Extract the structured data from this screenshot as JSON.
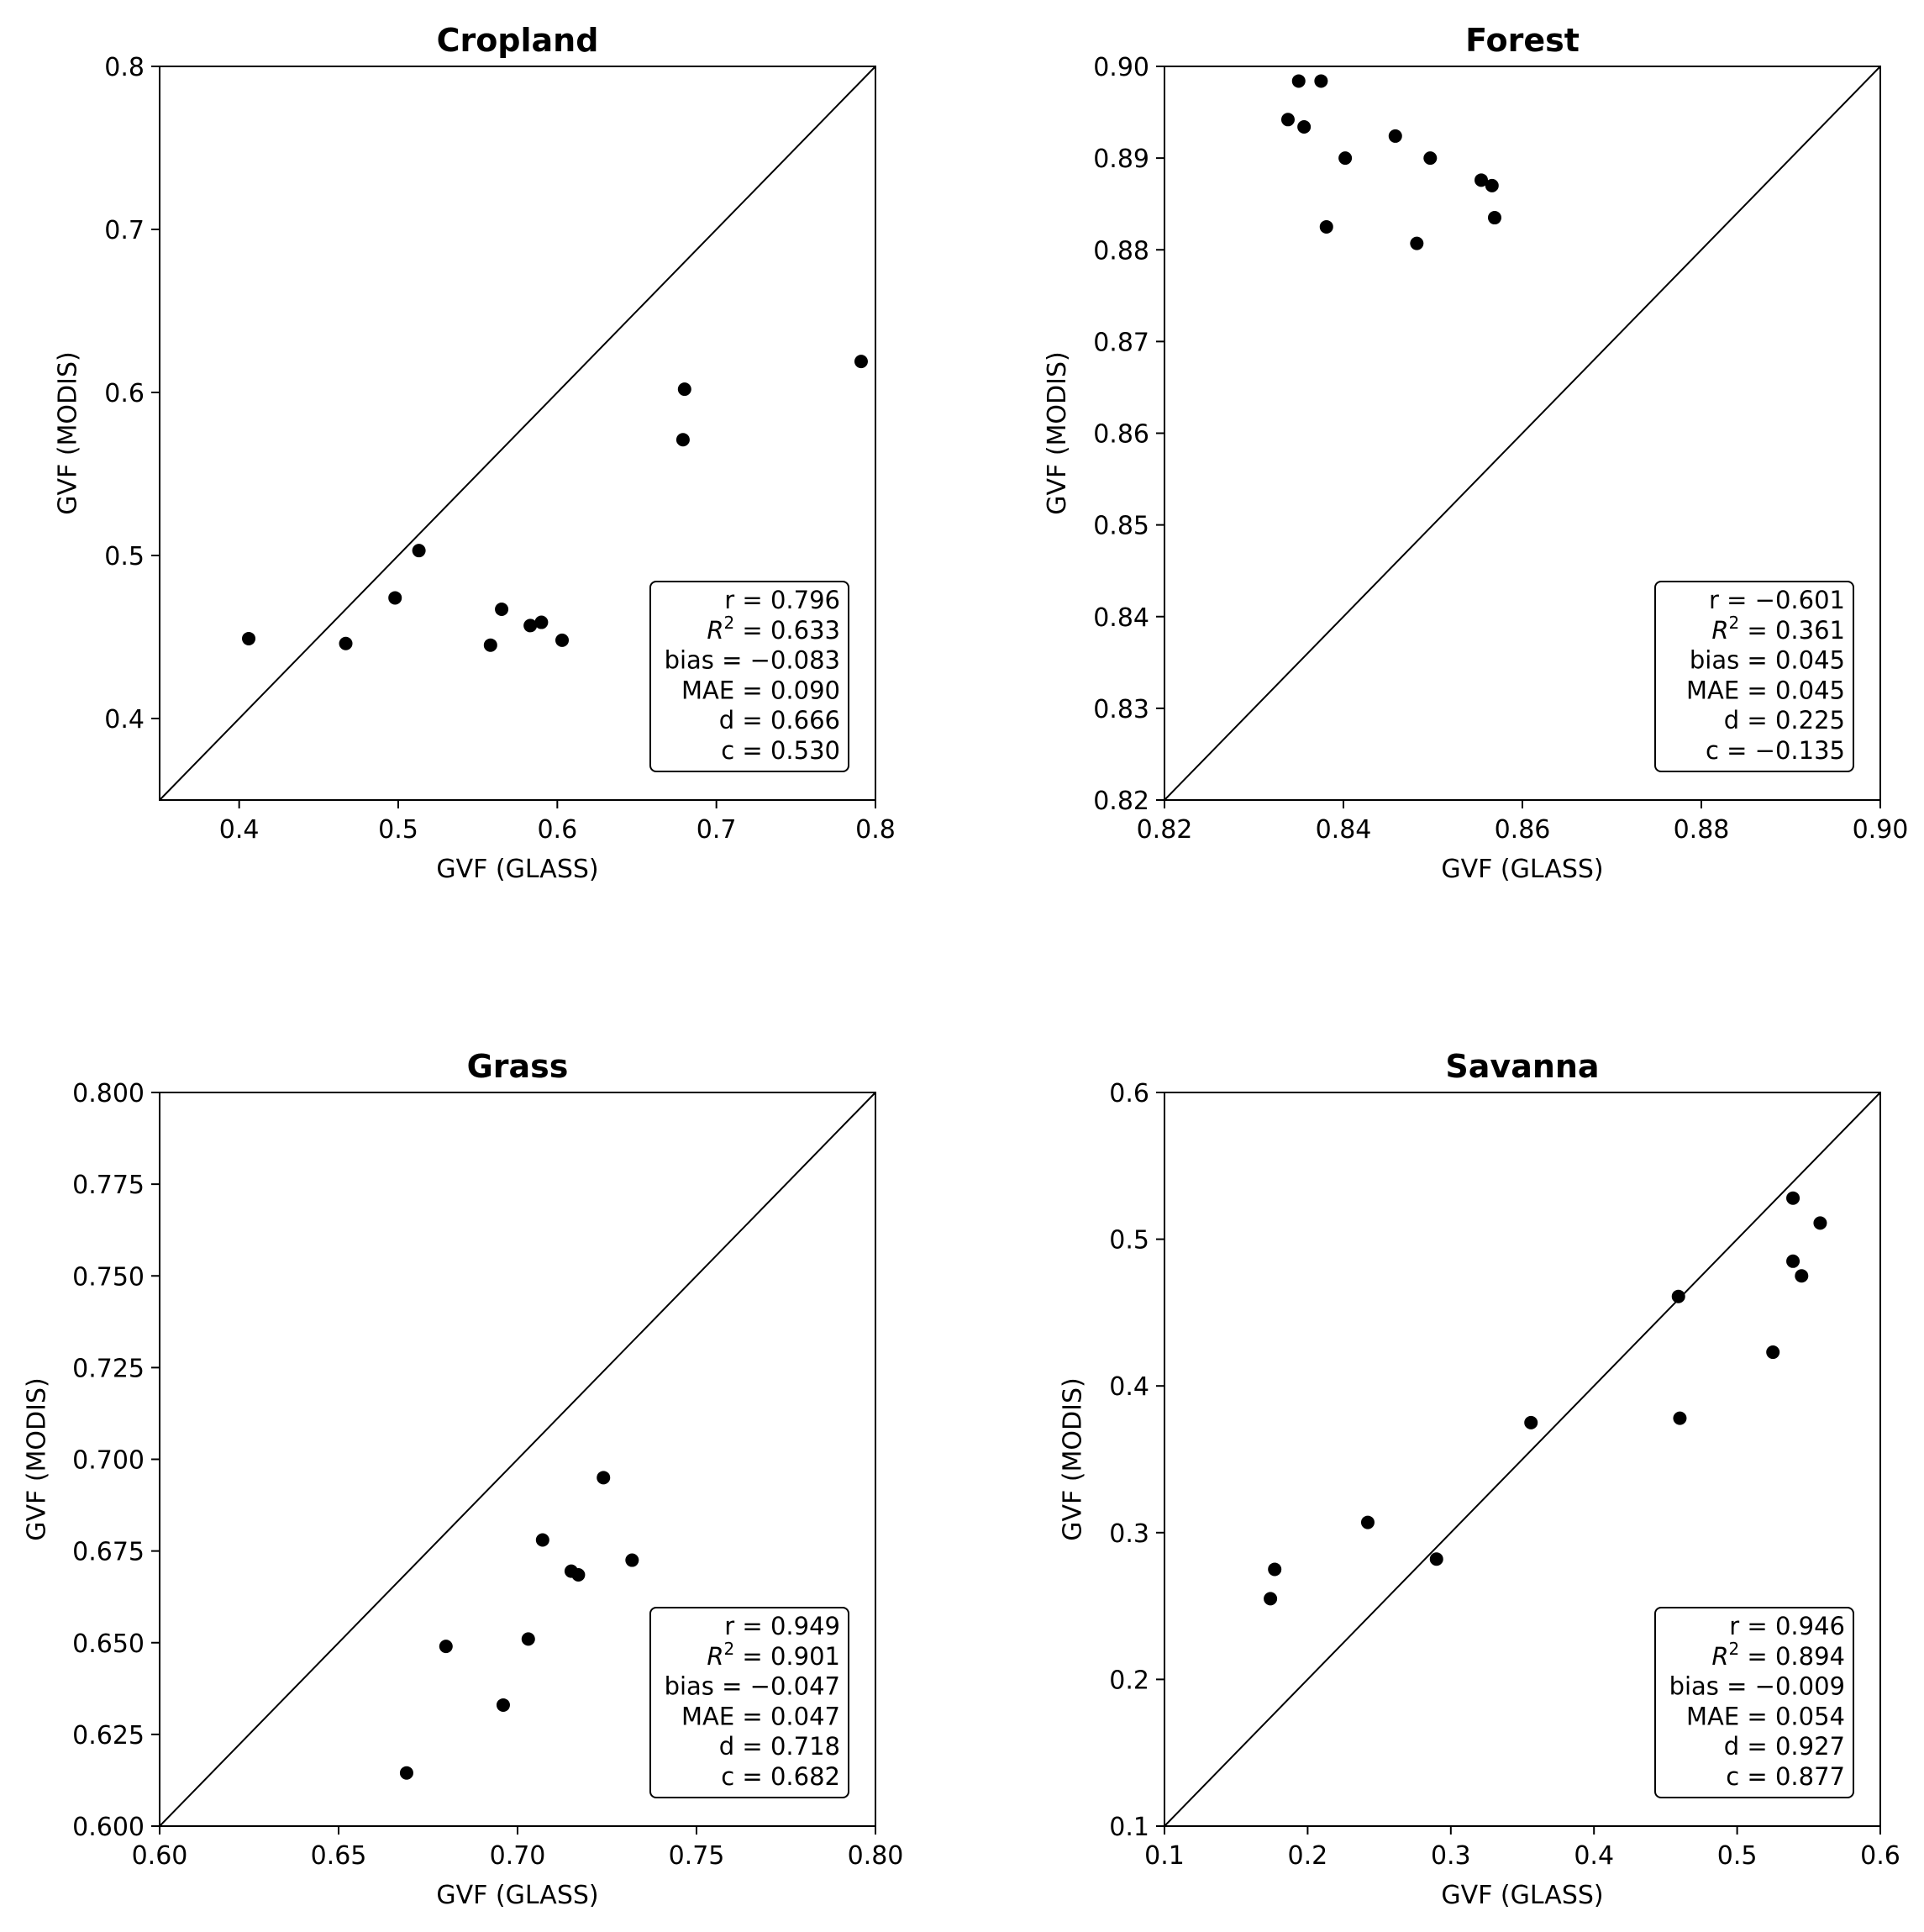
{
  "colors": {
    "marker": "#000000",
    "background": "#ffffff",
    "axes": "#000000"
  },
  "chart_data": [
    {
      "type": "scatter",
      "title": "Cropland",
      "xlabel": "GVF (GLASS)",
      "ylabel": "GVF (MODIS)",
      "xlim": [
        0.35,
        0.8
      ],
      "ylim": [
        0.35,
        0.8
      ],
      "xticks": [
        0.4,
        0.5,
        0.6,
        0.7,
        0.8
      ],
      "yticks": [
        0.4,
        0.5,
        0.6,
        0.7,
        0.8
      ],
      "xtick_labels": [
        "0.4",
        "0.5",
        "0.6",
        "0.7",
        "0.8"
      ],
      "ytick_labels": [
        "0.4",
        "0.5",
        "0.6",
        "0.7",
        "0.8"
      ],
      "reference_line": "1:1",
      "points": [
        {
          "x": 0.406,
          "y": 0.449
        },
        {
          "x": 0.467,
          "y": 0.446
        },
        {
          "x": 0.498,
          "y": 0.474
        },
        {
          "x": 0.513,
          "y": 0.503
        },
        {
          "x": 0.558,
          "y": 0.445
        },
        {
          "x": 0.565,
          "y": 0.467
        },
        {
          "x": 0.583,
          "y": 0.457
        },
        {
          "x": 0.59,
          "y": 0.459
        },
        {
          "x": 0.603,
          "y": 0.448
        },
        {
          "x": 0.679,
          "y": 0.571
        },
        {
          "x": 0.68,
          "y": 0.602
        },
        {
          "x": 0.791,
          "y": 0.619
        }
      ],
      "stats": [
        {
          "label": "r",
          "value": "0.796"
        },
        {
          "label": "R",
          "sup": "2",
          "value": "0.633"
        },
        {
          "label": "bias",
          "value": "−0.083"
        },
        {
          "label": "MAE",
          "value": "0.090"
        },
        {
          "label": "d",
          "value": "0.666"
        },
        {
          "label": "c",
          "value": "0.530"
        }
      ]
    },
    {
      "type": "scatter",
      "title": "Forest",
      "xlabel": "GVF (GLASS)",
      "ylabel": "GVF (MODIS)",
      "xlim": [
        0.82,
        0.9
      ],
      "ylim": [
        0.82,
        0.9
      ],
      "xticks": [
        0.82,
        0.84,
        0.86,
        0.88,
        0.9
      ],
      "yticks": [
        0.82,
        0.83,
        0.84,
        0.85,
        0.86,
        0.87,
        0.88,
        0.89,
        0.9
      ],
      "xtick_labels": [
        "0.82",
        "0.84",
        "0.86",
        "0.88",
        "0.90"
      ],
      "ytick_labels": [
        "0.82",
        "0.83",
        "0.84",
        "0.85",
        "0.86",
        "0.87",
        "0.88",
        "0.89",
        "0.90"
      ],
      "reference_line": "1:1",
      "points": [
        {
          "x": 0.8338,
          "y": 0.8942
        },
        {
          "x": 0.835,
          "y": 0.8984
        },
        {
          "x": 0.8356,
          "y": 0.8934
        },
        {
          "x": 0.8375,
          "y": 0.8984
        },
        {
          "x": 0.8381,
          "y": 0.8825
        },
        {
          "x": 0.8402,
          "y": 0.89
        },
        {
          "x": 0.8458,
          "y": 0.8924
        },
        {
          "x": 0.8482,
          "y": 0.8807
        },
        {
          "x": 0.8497,
          "y": 0.89
        },
        {
          "x": 0.8554,
          "y": 0.8876
        },
        {
          "x": 0.8566,
          "y": 0.887
        },
        {
          "x": 0.8569,
          "y": 0.8835
        }
      ],
      "stats": [
        {
          "label": "r",
          "value": "−0.601"
        },
        {
          "label": "R",
          "sup": "2",
          "value": "0.361"
        },
        {
          "label": "bias",
          "value": "0.045"
        },
        {
          "label": "MAE",
          "value": "0.045"
        },
        {
          "label": "d",
          "value": "0.225"
        },
        {
          "label": "c",
          "value": "−0.135"
        }
      ]
    },
    {
      "type": "scatter",
      "title": "Grass",
      "xlabel": "GVF (GLASS)",
      "ylabel": "GVF (MODIS)",
      "xlim": [
        0.6,
        0.8
      ],
      "ylim": [
        0.6,
        0.8
      ],
      "xticks": [
        0.6,
        0.65,
        0.7,
        0.75,
        0.8
      ],
      "yticks": [
        0.6,
        0.625,
        0.65,
        0.675,
        0.7,
        0.725,
        0.75,
        0.775,
        0.8
      ],
      "xtick_labels": [
        "0.60",
        "0.65",
        "0.70",
        "0.75",
        "0.80"
      ],
      "ytick_labels": [
        "0.600",
        "0.625",
        "0.650",
        "0.675",
        "0.700",
        "0.725",
        "0.750",
        "0.775",
        "0.800"
      ],
      "reference_line": "1:1",
      "points": [
        {
          "x": 0.669,
          "y": 0.6145
        },
        {
          "x": 0.68,
          "y": 0.649
        },
        {
          "x": 0.696,
          "y": 0.633
        },
        {
          "x": 0.703,
          "y": 0.651
        },
        {
          "x": 0.707,
          "y": 0.678
        },
        {
          "x": 0.715,
          "y": 0.6695
        },
        {
          "x": 0.717,
          "y": 0.6685
        },
        {
          "x": 0.724,
          "y": 0.695
        },
        {
          "x": 0.732,
          "y": 0.6725
        }
      ],
      "stats": [
        {
          "label": "r",
          "value": "0.949"
        },
        {
          "label": "R",
          "sup": "2",
          "value": "0.901"
        },
        {
          "label": "bias",
          "value": "−0.047"
        },
        {
          "label": "MAE",
          "value": "0.047"
        },
        {
          "label": "d",
          "value": "0.718"
        },
        {
          "label": "c",
          "value": "0.682"
        }
      ]
    },
    {
      "type": "scatter",
      "title": "Savanna",
      "xlabel": "GVF (GLASS)",
      "ylabel": "GVF (MODIS)",
      "xlim": [
        0.1,
        0.6
      ],
      "ylim": [
        0.1,
        0.6
      ],
      "xticks": [
        0.1,
        0.2,
        0.3,
        0.4,
        0.5,
        0.6
      ],
      "yticks": [
        0.1,
        0.2,
        0.3,
        0.4,
        0.5,
        0.6
      ],
      "xtick_labels": [
        "0.1",
        "0.2",
        "0.3",
        "0.4",
        "0.5",
        "0.6"
      ],
      "ytick_labels": [
        "0.1",
        "0.2",
        "0.3",
        "0.4",
        "0.5",
        "0.6"
      ],
      "reference_line": "1:1",
      "points": [
        {
          "x": 0.174,
          "y": 0.255
        },
        {
          "x": 0.177,
          "y": 0.275
        },
        {
          "x": 0.242,
          "y": 0.307
        },
        {
          "x": 0.29,
          "y": 0.282
        },
        {
          "x": 0.356,
          "y": 0.375
        },
        {
          "x": 0.459,
          "y": 0.461
        },
        {
          "x": 0.46,
          "y": 0.378
        },
        {
          "x": 0.525,
          "y": 0.423
        },
        {
          "x": 0.539,
          "y": 0.528
        },
        {
          "x": 0.539,
          "y": 0.485
        },
        {
          "x": 0.545,
          "y": 0.475
        },
        {
          "x": 0.558,
          "y": 0.511
        }
      ],
      "stats": [
        {
          "label": "r",
          "value": "0.946"
        },
        {
          "label": "R",
          "sup": "2",
          "value": "0.894"
        },
        {
          "label": "bias",
          "value": "−0.009"
        },
        {
          "label": "MAE",
          "value": "0.054"
        },
        {
          "label": "d",
          "value": "0.927"
        },
        {
          "label": "c",
          "value": "0.877"
        }
      ]
    }
  ]
}
